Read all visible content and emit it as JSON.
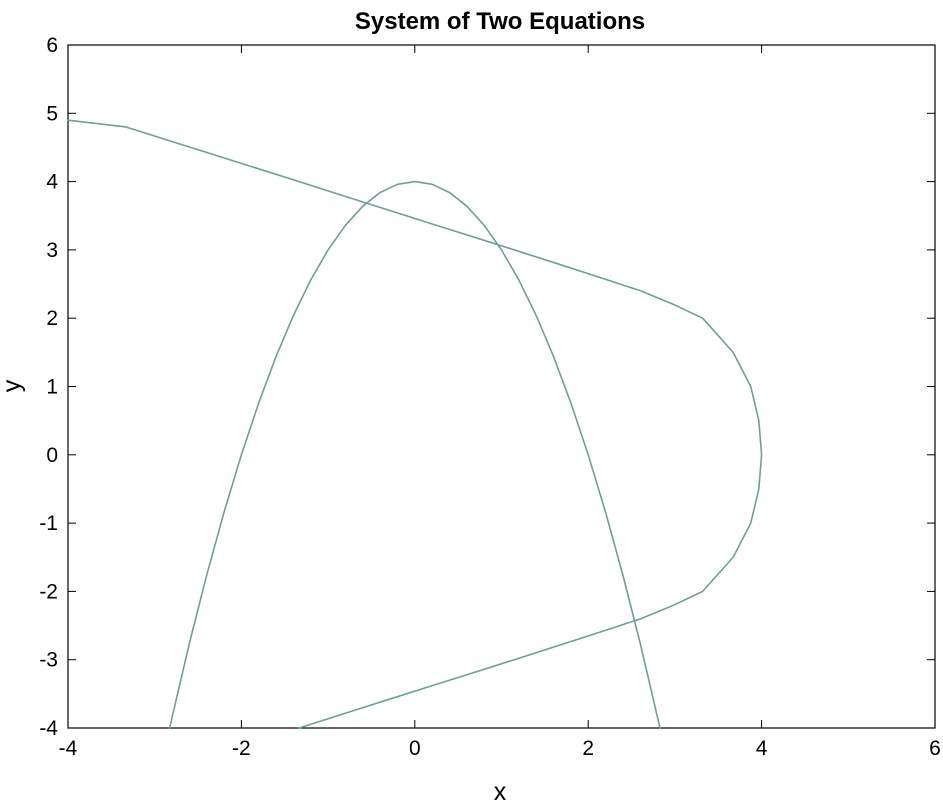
{
  "chart_data": {
    "type": "line",
    "title": "System of Two Equations",
    "xlabel": "x",
    "ylabel": "y",
    "xlim": [
      -4,
      6
    ],
    "ylim": [
      -4,
      6
    ],
    "xticks": [
      -4,
      -2,
      0,
      2,
      4,
      6
    ],
    "yticks": [
      -4,
      -3,
      -2,
      -1,
      0,
      1,
      2,
      3,
      4,
      5,
      6
    ],
    "grid": false,
    "line_color": "#6f9e99",
    "series": [
      {
        "points": [
          [
            -2.828,
            -4
          ],
          [
            -2.6,
            -2.76
          ],
          [
            -2.4,
            -1.76
          ],
          [
            -2.2,
            -0.84
          ],
          [
            -2.0,
            0.0
          ],
          [
            -1.8,
            0.76
          ],
          [
            -1.6,
            1.44
          ],
          [
            -1.4,
            2.04
          ],
          [
            -1.2,
            2.56
          ],
          [
            -1.0,
            3.0
          ],
          [
            -0.8,
            3.36
          ],
          [
            -0.6,
            3.64
          ],
          [
            -0.4,
            3.84
          ],
          [
            -0.2,
            3.96
          ],
          [
            0.0,
            4.0
          ],
          [
            0.2,
            3.96
          ],
          [
            0.4,
            3.84
          ],
          [
            0.6,
            3.64
          ],
          [
            0.8,
            3.36
          ],
          [
            1.0,
            3.0
          ],
          [
            1.2,
            2.56
          ],
          [
            1.4,
            2.04
          ],
          [
            1.6,
            1.44
          ],
          [
            1.8,
            0.76
          ],
          [
            2.0,
            0.0
          ],
          [
            2.2,
            -0.84
          ],
          [
            2.4,
            -1.76
          ],
          [
            2.6,
            -2.76
          ],
          [
            2.828,
            -4
          ]
        ]
      },
      {
        "points": [
          [
            -1.333,
            -4
          ],
          [
            -0.844,
            -3.8
          ],
          [
            -0.347,
            -3.6
          ],
          [
            0.151,
            -3.4
          ],
          [
            0.651,
            -3.2
          ],
          [
            1.147,
            -3.0
          ],
          [
            1.64,
            -2.8
          ],
          [
            2.127,
            -2.6
          ],
          [
            2.607,
            -2.4
          ],
          [
            2.988,
            -2.2
          ],
          [
            3.32,
            -2.0
          ],
          [
            3.672,
            -1.5
          ],
          [
            3.875,
            -1.0
          ],
          [
            3.968,
            -0.5
          ],
          [
            4.0,
            0.0
          ],
          [
            3.968,
            0.5
          ],
          [
            3.875,
            1.0
          ],
          [
            3.672,
            1.5
          ],
          [
            3.32,
            2.0
          ],
          [
            2.988,
            2.2
          ],
          [
            2.607,
            2.4
          ],
          [
            2.127,
            2.6
          ],
          [
            1.64,
            2.8
          ],
          [
            1.147,
            3.0
          ],
          [
            0.651,
            3.2
          ],
          [
            0.151,
            3.4
          ],
          [
            -0.347,
            3.6
          ],
          [
            -0.844,
            3.8
          ],
          [
            -1.333,
            4.0
          ],
          [
            -1.834,
            4.2
          ],
          [
            -2.334,
            4.4
          ],
          [
            -2.833,
            4.6
          ],
          [
            -3.333,
            4.8
          ],
          [
            -4.0,
            4.899
          ]
        ]
      }
    ]
  }
}
